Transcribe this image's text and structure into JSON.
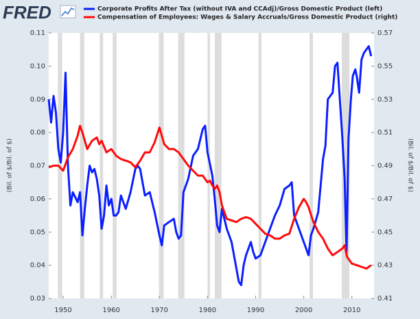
{
  "logo": "FRED",
  "chart_data": {
    "type": "line",
    "xlim": [
      1947,
      2014.6
    ],
    "xticks": [
      1950,
      1960,
      1970,
      1980,
      1990,
      2000,
      2010
    ],
    "ylim": [
      0.03,
      0.11
    ],
    "yticks": [
      0.03,
      0.04,
      0.05,
      0.06,
      0.07,
      0.08,
      0.09,
      {
        "value": 0.1,
        "label": "0.10"
      },
      0.11
    ],
    "y2lim": [
      0.41,
      0.57
    ],
    "y2ticks": [
      0.41,
      0.43,
      0.45,
      0.47,
      0.49,
      0.51,
      0.53,
      0.55,
      0.57
    ],
    "ylabel": "(Bil. of $/Bil. of $)",
    "y2label": "(Bil. of $/Bil. of $)",
    "recession_color": "#dddddd",
    "recessions": [
      [
        1948.9,
        1949.8
      ],
      [
        1953.5,
        1954.4
      ],
      [
        1957.6,
        1958.3
      ],
      [
        1960.3,
        1961.1
      ],
      [
        1969.9,
        1970.9
      ],
      [
        1973.9,
        1975.2
      ],
      [
        1980.0,
        1980.5
      ],
      [
        1981.5,
        1982.9
      ],
      [
        1990.6,
        1991.2
      ],
      [
        2001.2,
        2001.9
      ],
      [
        2007.9,
        2009.5
      ]
    ],
    "series": [
      {
        "name": "Corporate Profits After Tax (without IVA and CCAdj)/Gross Domestic Product (left)",
        "color": "#0a1eff",
        "axis": "y",
        "x": [
          1947,
          1947.5,
          1948,
          1948.5,
          1949,
          1949.5,
          1950,
          1950.5,
          1951,
          1951.5,
          1952,
          1953,
          1953.5,
          1954,
          1954.5,
          1955,
          1955.5,
          1956,
          1956.5,
          1957,
          1957.5,
          1958,
          1958.5,
          1959,
          1959.5,
          1960,
          1960.5,
          1961,
          1961.5,
          1962,
          1963,
          1964,
          1965,
          1965.5,
          1966,
          1966.5,
          1967,
          1968,
          1969,
          1970,
          1970.5,
          1971,
          1972,
          1973,
          1973.5,
          1974,
          1974.5,
          1975,
          1976,
          1977,
          1978,
          1978.5,
          1979,
          1979.5,
          1980,
          1981,
          1981.5,
          1982,
          1982.5,
          1983,
          1984,
          1985,
          1986,
          1986.5,
          1987,
          1987.5,
          1988,
          1989,
          1989.5,
          1990,
          1991,
          1992,
          1993,
          1994,
          1995,
          1996,
          1997,
          1997.5,
          1998,
          1999,
          2000,
          2001,
          2001.5,
          2002,
          2003,
          2004,
          2004.5,
          2005,
          2006,
          2006.5,
          2007,
          2007.5,
          2008,
          2008.5,
          2008.9,
          2009.3,
          2009.8,
          2010.2,
          2010.7,
          2011,
          2011.5,
          2012,
          2012.5,
          2013,
          2013.5,
          2014
        ],
        "values": [
          0.09,
          0.083,
          0.091,
          0.086,
          0.075,
          0.071,
          0.08,
          0.098,
          0.07,
          0.058,
          0.062,
          0.059,
          0.062,
          0.049,
          0.057,
          0.064,
          0.07,
          0.068,
          0.069,
          0.066,
          0.061,
          0.051,
          0.055,
          0.064,
          0.058,
          0.06,
          0.055,
          0.055,
          0.056,
          0.061,
          0.057,
          0.062,
          0.069,
          0.07,
          0.069,
          0.065,
          0.061,
          0.062,
          0.056,
          0.049,
          0.046,
          0.052,
          0.053,
          0.054,
          0.05,
          0.048,
          0.049,
          0.062,
          0.066,
          0.073,
          0.075,
          0.078,
          0.081,
          0.082,
          0.074,
          0.067,
          0.06,
          0.052,
          0.05,
          0.057,
          0.051,
          0.047,
          0.039,
          0.035,
          0.034,
          0.04,
          0.043,
          0.047,
          0.044,
          0.042,
          0.043,
          0.047,
          0.051,
          0.055,
          0.058,
          0.063,
          0.064,
          0.065,
          0.055,
          0.051,
          0.047,
          0.043,
          0.049,
          0.051,
          0.056,
          0.072,
          0.076,
          0.09,
          0.092,
          0.1,
          0.101,
          0.09,
          0.079,
          0.066,
          0.044,
          0.078,
          0.09,
          0.097,
          0.099,
          0.097,
          0.092,
          0.102,
          0.104,
          0.105,
          0.106,
          0.103
        ]
      },
      {
        "name": "Compensation of Employees: Wages & Salary Accruals/Gross Domestic Product (right)",
        "color": "#ff0a0a",
        "axis": "y2",
        "x": [
          1947,
          1948,
          1949,
          1950,
          1951,
          1952,
          1953,
          1953.5,
          1954,
          1955,
          1956,
          1957,
          1957.5,
          1958,
          1959,
          1960,
          1961,
          1962,
          1963,
          1964,
          1965,
          1966,
          1967,
          1968,
          1969,
          1970,
          1970.5,
          1971,
          1972,
          1973,
          1974,
          1975,
          1976,
          1977,
          1978,
          1979,
          1980,
          1980.5,
          1981,
          1981.5,
          1982,
          1982.5,
          1983,
          1984,
          1985,
          1986,
          1987,
          1988,
          1989,
          1990,
          1991,
          1992,
          1993,
          1994,
          1995,
          1996,
          1997,
          1998,
          1999,
          2000,
          2000.5,
          2001,
          2002,
          2003,
          2004,
          2005,
          2006,
          2007,
          2008,
          2008.5,
          2009,
          2010,
          2011,
          2012,
          2013,
          2014
        ],
        "values": [
          0.489,
          0.49,
          0.49,
          0.487,
          0.495,
          0.5,
          0.508,
          0.514,
          0.51,
          0.5,
          0.505,
          0.507,
          0.503,
          0.505,
          0.498,
          0.5,
          0.496,
          0.494,
          0.493,
          0.492,
          0.489,
          0.493,
          0.498,
          0.498,
          0.504,
          0.513,
          0.508,
          0.503,
          0.5,
          0.5,
          0.498,
          0.494,
          0.49,
          0.487,
          0.484,
          0.484,
          0.48,
          0.481,
          0.478,
          0.476,
          0.478,
          0.474,
          0.466,
          0.458,
          0.457,
          0.456,
          0.458,
          0.459,
          0.458,
          0.455,
          0.452,
          0.449,
          0.448,
          0.446,
          0.446,
          0.448,
          0.449,
          0.458,
          0.465,
          0.47,
          0.468,
          0.465,
          0.456,
          0.45,
          0.446,
          0.44,
          0.436,
          0.438,
          0.44,
          0.442,
          0.435,
          0.431,
          0.43,
          0.429,
          0.428,
          0.43
        ]
      }
    ]
  }
}
